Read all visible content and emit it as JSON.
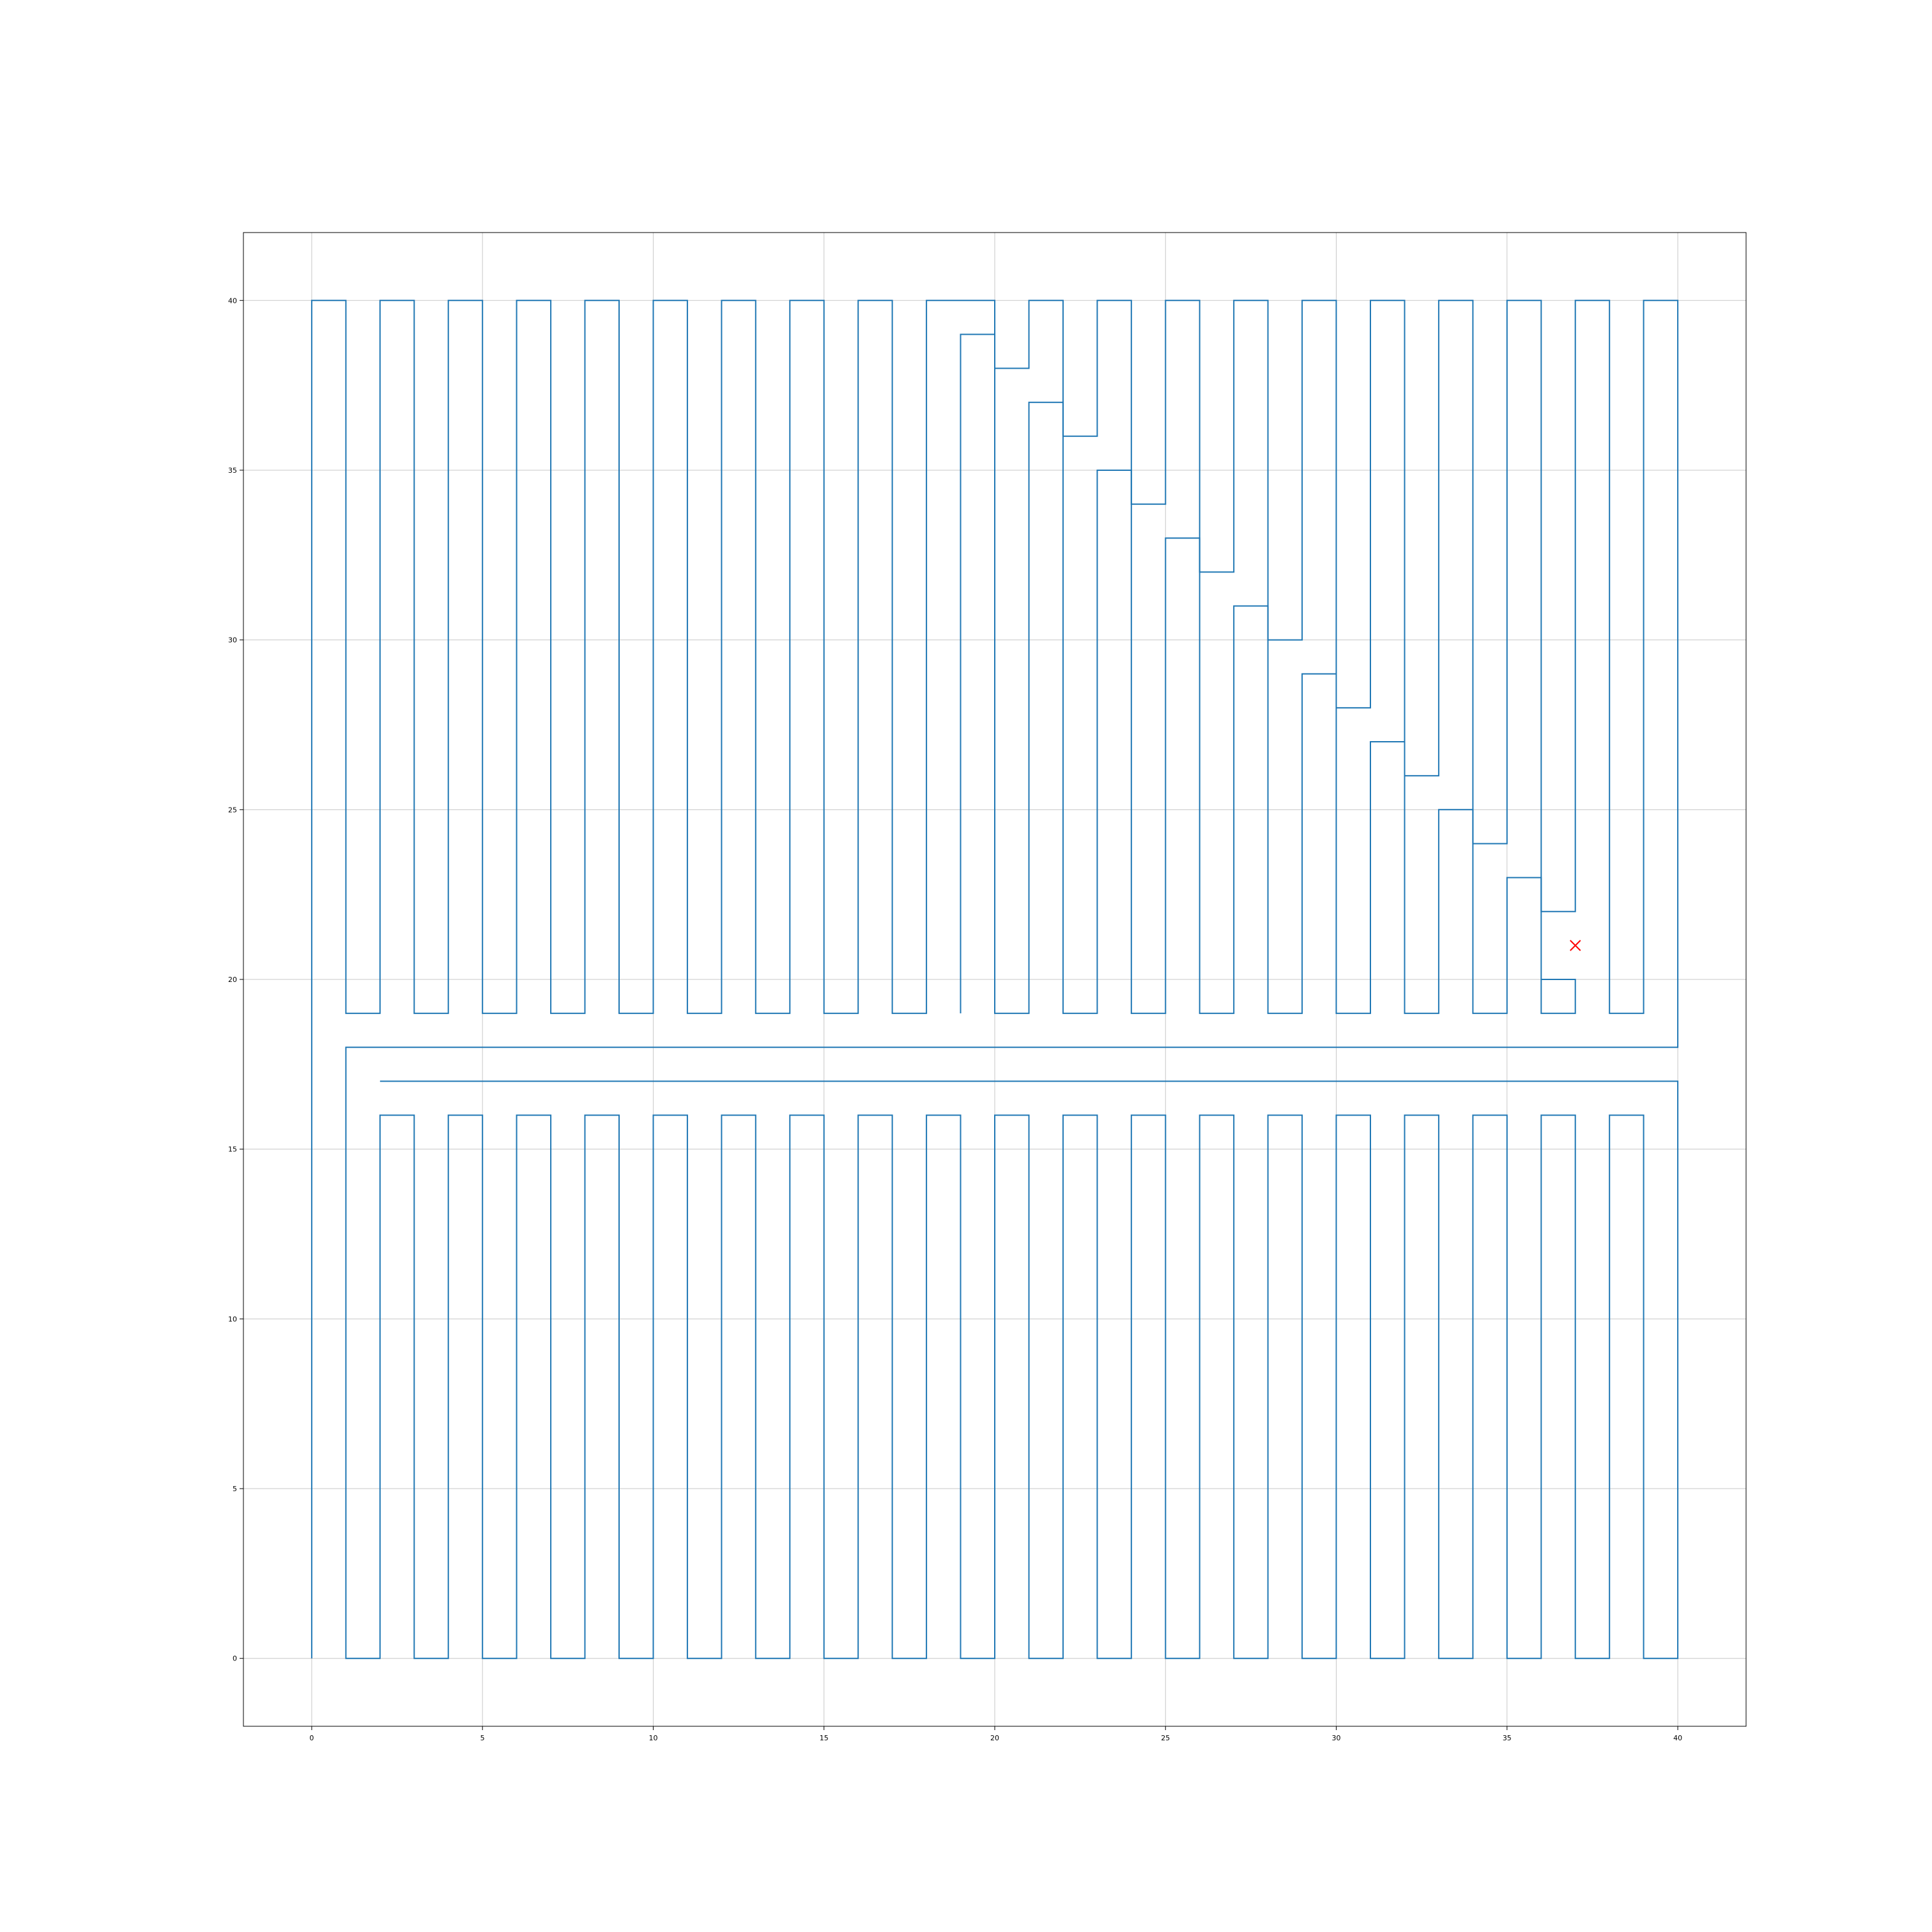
{
  "chart_data": {
    "type": "line",
    "title": "",
    "xlabel": "",
    "ylabel": "",
    "xlim": [
      -2,
      42
    ],
    "ylim": [
      -2,
      42
    ],
    "grid": true,
    "xticks": [
      0,
      5,
      10,
      15,
      20,
      25,
      30,
      35,
      40
    ],
    "yticks": [
      0,
      5,
      10,
      15,
      20,
      25,
      30,
      35,
      40
    ],
    "x_tick_labels": [
      "0",
      "5",
      "10",
      "15",
      "20",
      "25",
      "30",
      "35",
      "40"
    ],
    "y_tick_labels": [
      "0",
      "5",
      "10",
      "15",
      "20",
      "25",
      "30",
      "35",
      "40"
    ],
    "series": [
      {
        "color": "#1f77b4",
        "x": [
          0,
          0,
          1,
          1,
          2,
          2,
          3,
          3,
          4,
          4,
          5,
          5,
          6,
          6,
          7,
          7,
          8,
          8,
          9,
          9,
          10,
          10,
          11,
          11,
          12,
          12,
          13,
          13,
          14,
          14,
          15,
          15,
          16,
          16,
          17,
          17,
          18,
          18,
          20,
          20,
          21,
          21,
          22,
          22,
          23,
          23,
          24,
          24,
          25,
          25,
          26,
          26,
          27,
          27,
          28,
          28,
          29,
          29,
          30,
          30,
          31,
          31,
          32,
          32,
          33,
          33,
          34,
          34,
          35,
          35,
          36,
          36,
          37,
          37,
          38,
          38,
          39,
          39,
          40,
          40,
          1,
          1,
          2,
          2,
          3,
          3,
          4,
          4,
          5,
          5,
          6,
          6,
          7,
          7,
          8,
          8,
          9,
          9,
          10,
          10,
          11,
          11,
          12,
          12,
          13,
          13,
          14,
          14,
          15,
          15,
          16,
          16,
          17,
          17,
          18,
          18,
          19,
          19,
          20,
          20,
          21,
          21,
          22,
          22,
          23,
          23,
          24,
          24,
          25,
          25,
          26,
          26,
          27,
          27,
          28,
          28,
          29,
          29,
          30,
          30,
          31,
          31,
          32,
          32,
          33,
          33,
          34,
          34,
          35,
          35,
          36,
          36,
          37,
          37,
          38,
          38,
          39,
          39,
          40,
          40,
          2
        ],
        "y": [
          0,
          40,
          40,
          19,
          19,
          40,
          40,
          19,
          19,
          40,
          40,
          19,
          19,
          40,
          40,
          19,
          19,
          40,
          40,
          19,
          19,
          40,
          40,
          19,
          19,
          40,
          40,
          19,
          19,
          40,
          40,
          19,
          19,
          40,
          40,
          19,
          19,
          40,
          40,
          38,
          38,
          40,
          40,
          36,
          36,
          40,
          40,
          34,
          34,
          40,
          40,
          32,
          32,
          40,
          40,
          30,
          30,
          40,
          40,
          28,
          28,
          40,
          40,
          26,
          26,
          40,
          40,
          24,
          24,
          40,
          40,
          22,
          22,
          40,
          40,
          19,
          19,
          40,
          40,
          18,
          18,
          0,
          0,
          16,
          16,
          0,
          0,
          16,
          16,
          0,
          0,
          16,
          16,
          0,
          0,
          16,
          16,
          0,
          0,
          16,
          16,
          0,
          0,
          16,
          16,
          0,
          0,
          16,
          16,
          0,
          0,
          16,
          16,
          0,
          0,
          16,
          16,
          0,
          0,
          16,
          16,
          0,
          0,
          16,
          16,
          0,
          0,
          16,
          16,
          0,
          0,
          16,
          16,
          0,
          0,
          16,
          16,
          0,
          0,
          16,
          16,
          0,
          0,
          16,
          16,
          0,
          0,
          16,
          16,
          0,
          0,
          16,
          16,
          0,
          0,
          16,
          16,
          0,
          0,
          17,
          17
        ]
      },
      {
        "color": "#1f77b4",
        "x": [
          19,
          19,
          20,
          20,
          21,
          21,
          22,
          22,
          23,
          23,
          24,
          24,
          25,
          25,
          26,
          26,
          27,
          27,
          28,
          28,
          29,
          29,
          30,
          30,
          31,
          31,
          32,
          32,
          33,
          33,
          34,
          34,
          35,
          35,
          36,
          36,
          37,
          37,
          36,
          36
        ],
        "y": [
          19,
          39,
          39,
          19,
          19,
          37,
          37,
          19,
          19,
          35,
          35,
          19,
          19,
          33,
          33,
          19,
          19,
          31,
          31,
          19,
          19,
          29,
          29,
          19,
          19,
          27,
          27,
          19,
          19,
          25,
          25,
          19,
          19,
          23,
          23,
          19,
          19,
          20,
          20,
          22
        ]
      }
    ],
    "markers": [
      {
        "type": "x",
        "x": 37,
        "y": 21,
        "color": "#ff0000"
      }
    ]
  }
}
